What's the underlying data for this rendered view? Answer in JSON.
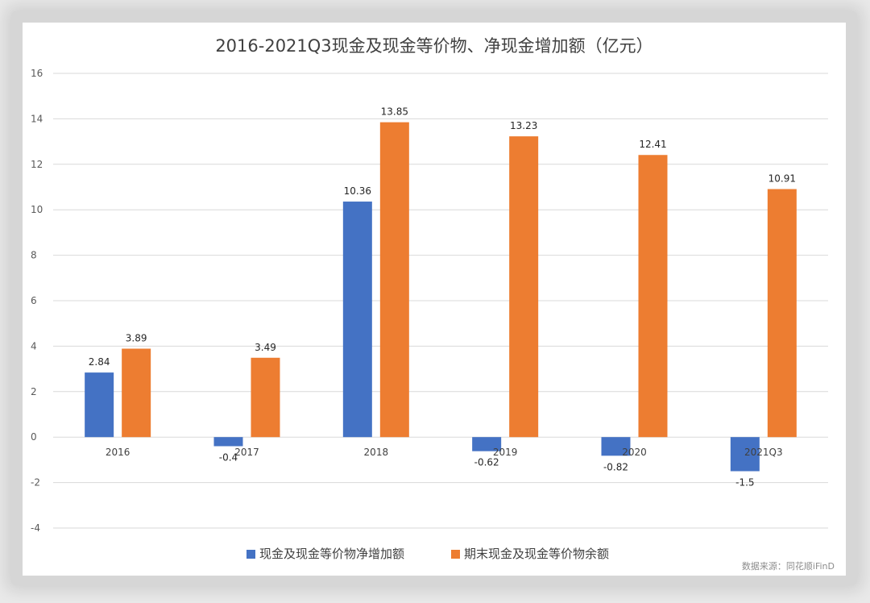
{
  "chart_data": {
    "type": "bar",
    "title": "2016-2021Q3现金及现金等价物、净现金增加额（亿元）",
    "categories": [
      "2016",
      "2017",
      "2018",
      "2019",
      "2020",
      "2021Q3"
    ],
    "series": [
      {
        "name": "现金及现金等价物净增加额",
        "color": "#4472c4",
        "values": [
          2.84,
          -0.4,
          10.36,
          -0.62,
          -0.82,
          -1.5
        ],
        "labels": [
          "2.84",
          "-0.4",
          "10.36",
          "-0.62",
          "-0.82",
          "-1.5"
        ]
      },
      {
        "name": "期末现金及现金等价物余额",
        "color": "#ed7d31",
        "values": [
          3.89,
          3.49,
          13.85,
          13.23,
          12.41,
          10.91
        ],
        "labels": [
          "3.89",
          "3.49",
          "13.85",
          "13.23",
          "12.41",
          "10.91"
        ]
      }
    ],
    "ylim": [
      -4,
      16
    ],
    "yticks": [
      "-4",
      "-2",
      "0",
      "2",
      "4",
      "6",
      "8",
      "10",
      "12",
      "14",
      "16"
    ],
    "grid": true,
    "legend_position": "bottom",
    "source": "数据来源：同花顺iFinD"
  }
}
